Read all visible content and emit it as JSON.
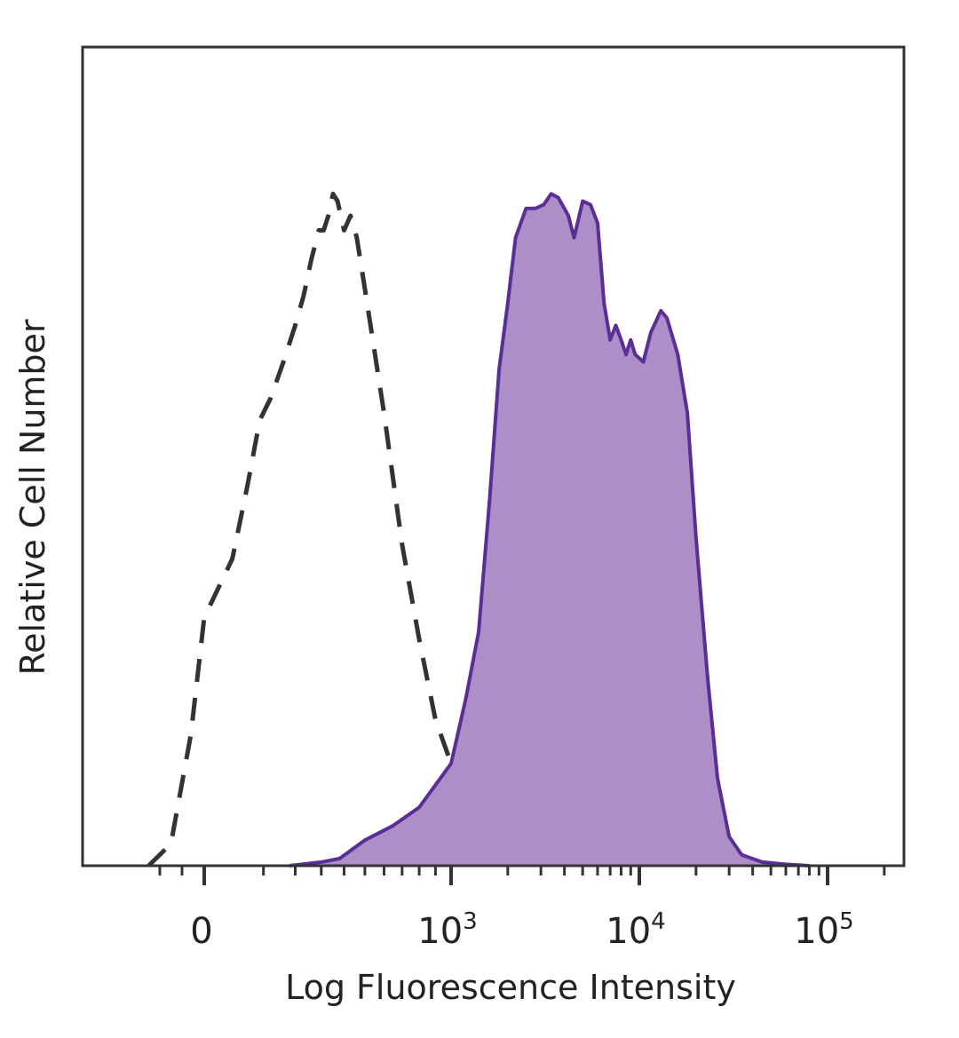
{
  "chart_data": {
    "type": "area",
    "title": "",
    "xlabel": "Log Fluorescence Intensity",
    "ylabel": "Relative Cell Number",
    "x_scale": "biexponential",
    "xlim": [
      -300,
      200000
    ],
    "ylim": [
      0,
      100
    ],
    "grid": false,
    "legend": "none",
    "x_ticks": [
      {
        "value": 0,
        "base": "0",
        "exp": ""
      },
      {
        "value": 1000,
        "base": "10",
        "exp": "3"
      },
      {
        "value": 10000,
        "base": "10",
        "exp": "4"
      },
      {
        "value": 100000,
        "base": "10",
        "exp": "5"
      }
    ],
    "series": [
      {
        "style": "dashed",
        "color": "#333333",
        "fill": "none",
        "points": [
          [
            -250,
            0
          ],
          [
            -150,
            3
          ],
          [
            -60,
            18
          ],
          [
            0,
            34
          ],
          [
            30,
            42
          ],
          [
            60,
            52
          ],
          [
            90,
            61
          ],
          [
            120,
            64
          ],
          [
            160,
            69
          ],
          [
            200,
            74
          ],
          [
            230,
            78
          ],
          [
            260,
            83
          ],
          [
            290,
            87
          ],
          [
            310,
            87
          ],
          [
            330,
            89
          ],
          [
            350,
            92
          ],
          [
            370,
            91
          ],
          [
            400,
            87
          ],
          [
            430,
            89
          ],
          [
            460,
            86
          ],
          [
            500,
            79
          ],
          [
            600,
            62
          ],
          [
            700,
            44
          ],
          [
            800,
            31
          ],
          [
            900,
            20
          ],
          [
            1000,
            14
          ],
          [
            1200,
            8
          ],
          [
            1500,
            3
          ],
          [
            2000,
            0
          ]
        ]
      },
      {
        "style": "solid",
        "color": "#5b2d96",
        "fill": "#ac8fc6",
        "points": [
          [
            180,
            0
          ],
          [
            300,
            0.5
          ],
          [
            380,
            1
          ],
          [
            500,
            3.5
          ],
          [
            650,
            5.5
          ],
          [
            800,
            8
          ],
          [
            1000,
            14
          ],
          [
            1200,
            23
          ],
          [
            1400,
            32
          ],
          [
            1600,
            50
          ],
          [
            1800,
            68
          ],
          [
            2000,
            77
          ],
          [
            2200,
            86
          ],
          [
            2500,
            90
          ],
          [
            2800,
            90
          ],
          [
            3100,
            90.5
          ],
          [
            3400,
            92
          ],
          [
            3700,
            91.5
          ],
          [
            4000,
            90
          ],
          [
            4200,
            89
          ],
          [
            4500,
            86
          ],
          [
            5000,
            91
          ],
          [
            5500,
            90.5
          ],
          [
            6000,
            88
          ],
          [
            6500,
            77
          ],
          [
            7000,
            72
          ],
          [
            7500,
            74
          ],
          [
            8000,
            72
          ],
          [
            8500,
            70
          ],
          [
            9000,
            72
          ],
          [
            9500,
            70
          ],
          [
            10500,
            69
          ],
          [
            11500,
            73
          ],
          [
            13000,
            76
          ],
          [
            14000,
            75
          ],
          [
            16000,
            70
          ],
          [
            18000,
            62
          ],
          [
            20000,
            45
          ],
          [
            23000,
            26
          ],
          [
            26000,
            12
          ],
          [
            30000,
            4
          ],
          [
            35000,
            1.5
          ],
          [
            45000,
            0.5
          ],
          [
            60000,
            0.2
          ],
          [
            80000,
            0
          ]
        ]
      }
    ]
  }
}
